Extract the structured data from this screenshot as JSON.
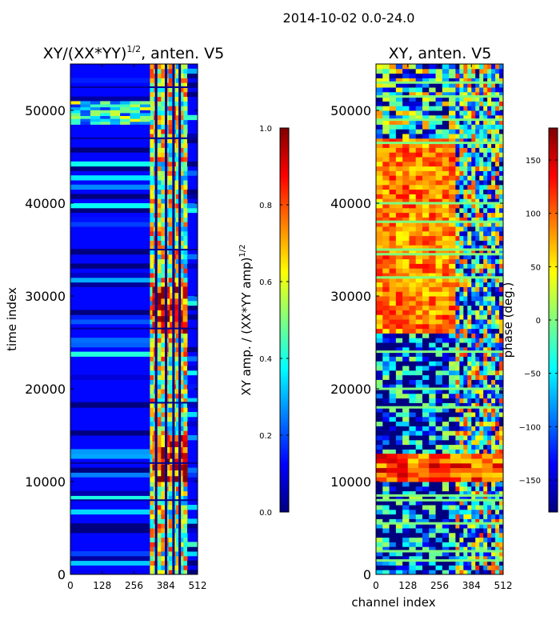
{
  "figure": {
    "suptitle": "2014-10-02 0.0-24.0"
  },
  "colormap_stops": [
    "#00007f",
    "#0000ff",
    "#007fff",
    "#00ffff",
    "#7fff7f",
    "#ffff00",
    "#ff7f00",
    "#ff0000",
    "#7f0000"
  ],
  "chart_data": [
    {
      "type": "heatmap",
      "title_main": "XY/(XX*YY)",
      "title_sup": "1/2",
      "title_suffix": ", anten. V5",
      "xlabel": "",
      "ylabel": "time index",
      "xlim": [
        0,
        512
      ],
      "ylim": [
        0,
        55000
      ],
      "x_ticks": [
        0,
        128,
        256,
        384,
        512
      ],
      "y_ticks": [
        0,
        10000,
        20000,
        30000,
        40000,
        50000
      ],
      "colorbar": {
        "label": "XY amp. / (XX*YY amp)^1/2",
        "label_main": "XY amp. / (XX*YY amp)",
        "label_sup": "1/2",
        "range": [
          0.0,
          1.0
        ],
        "ticks": [
          "0.0",
          "0.2",
          "0.4",
          "0.6",
          "0.8",
          "1.0"
        ]
      },
      "bands": [
        {
          "x0": 0,
          "x1": 320,
          "value": 0.12
        },
        {
          "x0": 320,
          "x1": 470,
          "value": 0.55
        },
        {
          "x0": 470,
          "x1": 512,
          "value": 0.15
        }
      ],
      "features": [
        {
          "t0": 48500,
          "t1": 51000,
          "x0": 0,
          "x1": 320,
          "value": 0.4
        },
        {
          "t0": 26000,
          "t1": 31000,
          "x0": 330,
          "x1": 470,
          "value": 0.85
        },
        {
          "t0": 10000,
          "t1": 15000,
          "x0": 330,
          "x1": 470,
          "value": 0.85
        }
      ],
      "gap_channels": [
        345,
        385,
        415,
        440
      ],
      "rfi_rows": [
        52500,
        47000,
        35000,
        26500,
        18500,
        12000,
        8000
      ]
    },
    {
      "type": "heatmap",
      "title": "XY, anten. V5",
      "xlabel": "channel index",
      "ylabel": "",
      "xlim": [
        0,
        512
      ],
      "ylim": [
        0,
        55000
      ],
      "x_ticks": [
        0,
        128,
        256,
        384,
        512
      ],
      "y_ticks": [
        0,
        10000,
        20000,
        30000,
        40000,
        50000
      ],
      "colorbar": {
        "label": "phase (deg.)",
        "range": [
          -180,
          180
        ],
        "ticks": [
          "−150",
          "−100",
          "−50",
          "0",
          "50",
          "100",
          "150"
        ]
      },
      "bands": [
        {
          "t0": 0,
          "t1": 26000,
          "x0": 0,
          "x1": 320,
          "value": 0.12
        },
        {
          "t0": 26000,
          "t1": 47000,
          "x0": 0,
          "x1": 320,
          "value": 0.75
        },
        {
          "t0": 47000,
          "t1": 55000,
          "x0": 0,
          "x1": 320,
          "value": 0.3
        },
        {
          "t0": 0,
          "t1": 55000,
          "x0": 320,
          "x1": 512,
          "value": 0.4
        }
      ],
      "features": [
        {
          "t0": 10000,
          "t1": 13000,
          "x0": 0,
          "x1": 512,
          "value": 0.8
        }
      ],
      "flag_rows": [
        53000,
        51500,
        49000,
        46500,
        40000,
        38000,
        35000,
        34500,
        32000,
        24000,
        20000,
        18000,
        8500,
        8000,
        5500,
        2500,
        1500
      ]
    }
  ]
}
